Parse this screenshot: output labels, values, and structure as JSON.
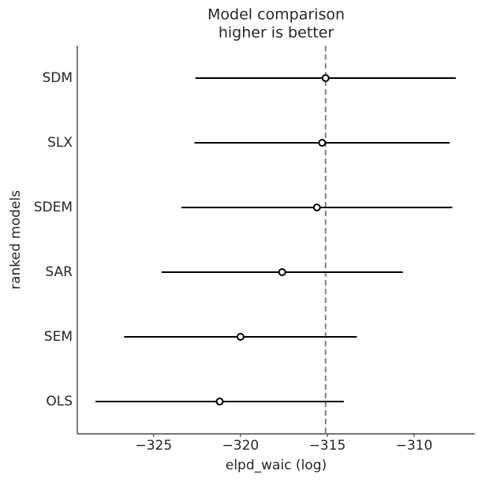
{
  "chart_data": {
    "type": "forest",
    "title": "Model comparison",
    "subtitle": "higher is better",
    "x_label": "elpd_waic (log)",
    "y_label": "ranked models",
    "categories": [
      "SDM",
      "SLX",
      "SDEM",
      "SAR",
      "SEM",
      "OLS"
    ],
    "values": [
      -315.1,
      -315.3,
      -315.6,
      -317.6,
      -320.0,
      -321.2
    ],
    "errors": [
      7.5,
      7.35,
      7.8,
      6.95,
      6.7,
      7.15
    ],
    "reference": -315.1,
    "xlim": [
      -329.4,
      -306.5
    ],
    "xticks": [
      {
        "value": -325,
        "label": "−325"
      },
      {
        "value": -320,
        "label": "−320"
      },
      {
        "value": -315,
        "label": "−315"
      },
      {
        "value": -310,
        "label": "−310"
      }
    ],
    "color": "#000000",
    "reference_color": "#808080",
    "grid": false
  }
}
